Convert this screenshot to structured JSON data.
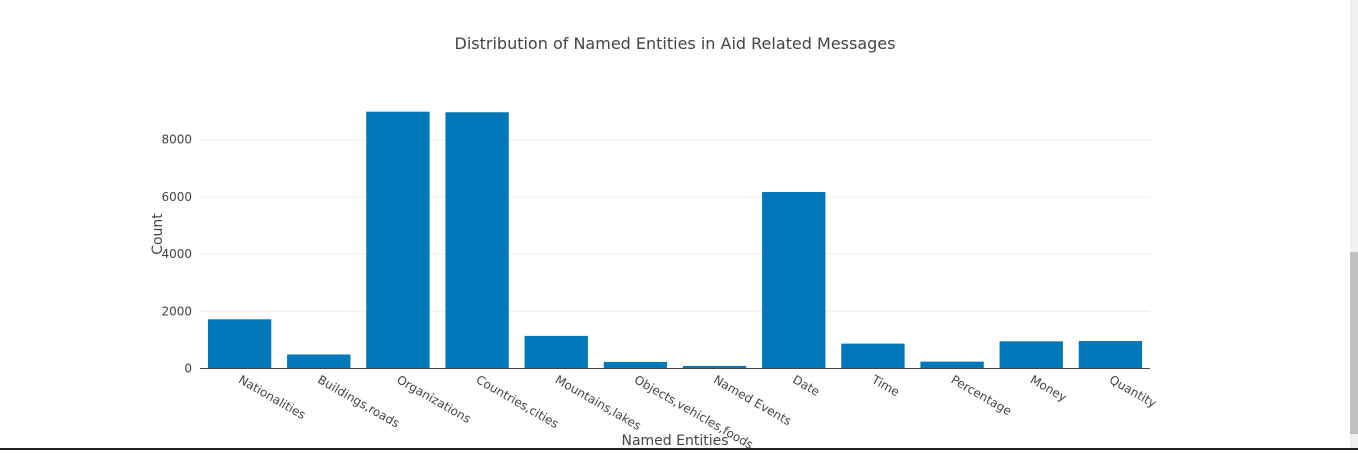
{
  "chart_data": {
    "type": "bar",
    "title": "Distribution of Named Entities in Aid Related Messages",
    "xlabel": "Named Entities",
    "ylabel": "Count",
    "categories": [
      "Nationalities",
      "Buildings,roads",
      "Organizations",
      "Countries,cities",
      "Mountains,lakes",
      "Objects,vehicles,foods",
      "Named Events",
      "Date",
      "Time",
      "Percentage",
      "Money",
      "Quantity"
    ],
    "values": [
      1720,
      490,
      8980,
      8960,
      1140,
      230,
      90,
      6170,
      870,
      240,
      950,
      960
    ],
    "ylim": [
      0,
      9500
    ],
    "yticks": [
      0,
      2000,
      4000,
      6000,
      8000
    ],
    "grid": true,
    "bar_color": "#0077b6"
  }
}
